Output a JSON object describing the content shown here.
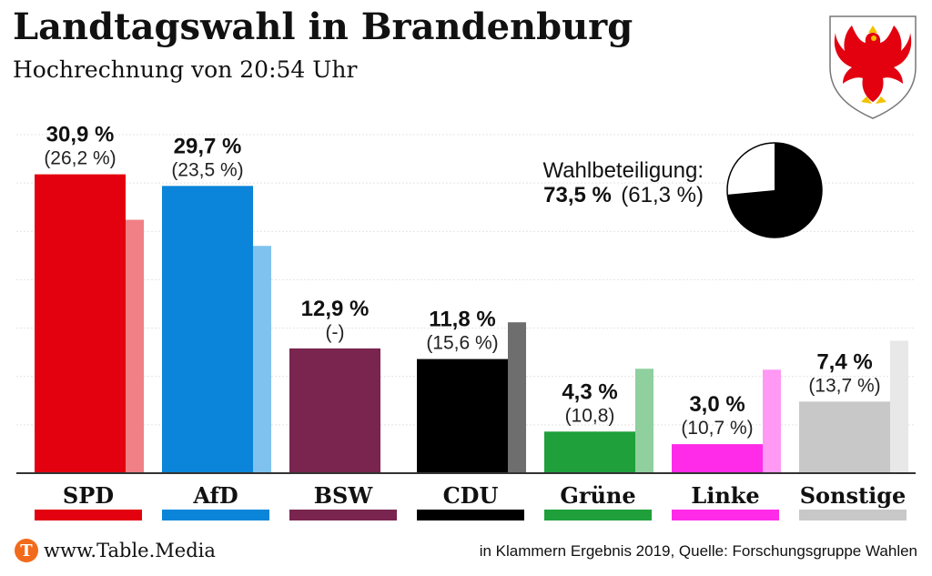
{
  "title": "Landtagswahl in Brandenburg",
  "subtitle": "Hochrechnung von 20:54 Uhr",
  "emblem": {
    "name": "brandenburg-coat-of-arms-icon",
    "colors": {
      "eagle": "#e3000f",
      "gold": "#f2c200"
    }
  },
  "turnout": {
    "label": "Wahlbeteiligung:",
    "value_text": "73,5 %",
    "previous_text": "(61,3 %)",
    "value": 73.5,
    "previous": 61.3
  },
  "chart_data": {
    "type": "bar",
    "categories": [
      "SPD",
      "AfD",
      "BSW",
      "CDU",
      "Grüne",
      "Linke",
      "Sonstige"
    ],
    "series": [
      {
        "values": [
          30.9,
          29.7,
          12.9,
          11.8,
          4.3,
          3.0,
          7.4
        ]
      },
      {
        "values": [
          26.2,
          23.5,
          null,
          15.6,
          10.8,
          10.7,
          13.7
        ]
      }
    ],
    "value_labels": [
      "30,9 %",
      "29,7 %",
      "12,9 %",
      "11,8 %",
      "4,3 %",
      "3,0 %",
      "7,4 %"
    ],
    "previous_labels": [
      "(26,2 %)",
      "(23,5 %)",
      "(-)",
      "(15,6 %)",
      "(10,8)",
      "(10,7 %)",
      "(13,7 %)"
    ],
    "colors": [
      "#e3000f",
      "#0a85d9",
      "#7a2550",
      "#000000",
      "#1fa03a",
      "#ff2be8",
      "#c8c8c8"
    ],
    "previous_colors": [
      "#f07f86",
      "#7fc2ef",
      "#b07a93",
      "#6e6e6e",
      "#8fd09e",
      "#ff99f4",
      "#e8e8e8"
    ],
    "ylim": [
      0,
      35
    ],
    "grid": true,
    "legend": "none"
  },
  "footer": {
    "logo_letter": "T",
    "site": "www.Table.Media",
    "source": "in Klammern Ergebnis 2019, Quelle: Forschungsgruppe Wahlen"
  }
}
